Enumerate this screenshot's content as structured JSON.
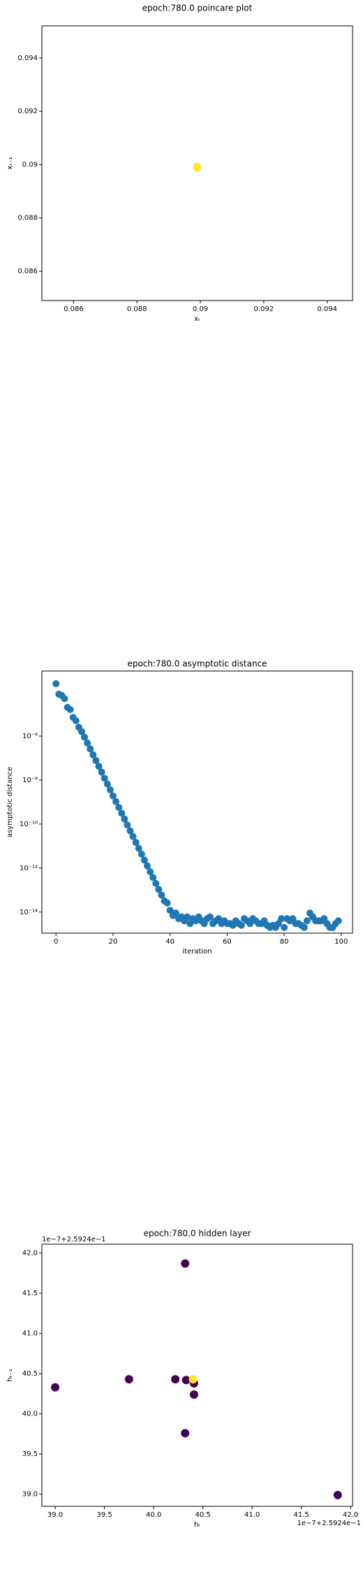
{
  "chart_data": [
    {
      "type": "scatter",
      "title": "epoch:780.0 poincare plot",
      "xlabel": "xₜ",
      "ylabel": "xₜ₋₁",
      "x": [
        0.0899
      ],
      "y": [
        0.0899
      ],
      "color": "#fde725",
      "xlim": [
        0.085,
        0.0948
      ],
      "ylim": [
        0.0849,
        0.0952
      ],
      "xticks": [
        0.086,
        0.088,
        0.09,
        0.092,
        0.094
      ],
      "yticks": [
        0.086,
        0.088,
        0.09,
        0.092,
        0.094
      ]
    },
    {
      "type": "scatter",
      "title": "epoch:780.0 asymptotic distance",
      "xlabel": "iteration",
      "ylabel": "asymptotic distance",
      "yscale": "log",
      "color": "#1f77b4",
      "x": [
        0,
        1,
        2,
        3,
        4,
        5,
        6,
        7,
        8,
        9,
        10,
        11,
        12,
        13,
        14,
        15,
        16,
        17,
        18,
        19,
        20,
        21,
        22,
        23,
        24,
        25,
        26,
        27,
        28,
        29,
        30,
        31,
        32,
        33,
        34,
        35,
        36,
        37,
        38,
        39,
        40,
        41,
        42,
        43,
        44,
        45,
        46,
        47,
        48,
        49,
        50,
        51,
        52,
        53,
        54,
        55,
        56,
        57,
        58,
        59,
        60,
        61,
        62,
        63,
        64,
        65,
        66,
        67,
        68,
        69,
        70,
        71,
        72,
        73,
        74,
        75,
        76,
        77,
        78,
        79,
        80,
        81,
        82,
        83,
        84,
        85,
        86,
        87,
        88,
        89,
        90,
        91,
        92,
        93,
        94,
        95,
        96,
        97,
        98,
        99
      ],
      "y": [
        0.00024,
        8e-05,
        7e-05,
        5e-05,
        2e-05,
        1.6e-05,
        7e-06,
        5e-06,
        2.5e-06,
        1.6e-06,
        8.9e-07,
        4.8e-07,
        2.6e-07,
        1.4e-07,
        7.7e-08,
        4.2e-08,
        2.3e-08,
        1.2e-08,
        6.6e-09,
        3.6e-09,
        1.9e-09,
        1.05e-09,
        5.7e-10,
        3.1e-10,
        1.7e-10,
        9.1e-11,
        4.9e-11,
        2.7e-11,
        1.45e-11,
        7.9e-12,
        4.3e-12,
        2.3e-12,
        1.26e-12,
        6.8e-13,
        3.7e-13,
        2e-13,
        1.07e-13,
        5.9e-14,
        3.2e-14,
        2.6e-14,
        1.2e-14,
        7e-15,
        9e-15,
        5e-15,
        6e-15,
        4e-15,
        6e-15,
        3e-15,
        5e-15,
        4e-15,
        6e-15,
        4e-15,
        3e-15,
        5e-15,
        6e-15,
        3e-15,
        4e-15,
        5e-15,
        3e-15,
        4e-15,
        3e-15,
        3e-15,
        2.5e-15,
        4e-15,
        3e-15,
        2.5e-15,
        5e-15,
        4e-15,
        3e-15,
        5e-15,
        4e-15,
        3e-15,
        3e-15,
        4e-15,
        2.5e-15,
        2e-15,
        2.5e-15,
        2e-15,
        3e-15,
        5e-15,
        2e-15,
        5e-15,
        4e-15,
        5e-15,
        3e-15,
        3e-15,
        2.5e-15,
        2e-15,
        4e-15,
        9e-15,
        6e-15,
        4e-15,
        4e-15,
        4e-15,
        5e-15,
        3e-15,
        2e-15,
        2e-15,
        3e-15,
        4e-15
      ],
      "xlim": [
        -4.95,
        103.95
      ],
      "ylim": [
        1.1e-15,
        0.0009
      ],
      "xticks": [
        0,
        20,
        40,
        60,
        80,
        100
      ],
      "yticks": [
        {
          "value": 1e-06,
          "label": "10⁻⁶"
        },
        {
          "value": 1e-08,
          "label": "10⁻⁸"
        },
        {
          "value": 1e-10,
          "label": "10⁻¹⁰"
        },
        {
          "value": 1e-12,
          "label": "10⁻¹²"
        },
        {
          "value": 1e-14,
          "label": "10⁻¹⁴"
        }
      ]
    },
    {
      "type": "scatter",
      "title": "epoch:780.0 hidden layer",
      "xlabel": "hₜ",
      "ylabel": "hₜ₋₁",
      "x_offset": "1e−7+2.5924e−1",
      "y_offset": "1e−7+2.5924e−1",
      "x": [
        39.0,
        39.75,
        40.22,
        40.32,
        40.32,
        40.33,
        40.41,
        40.41,
        40.4,
        41.87
      ],
      "y": [
        40.33,
        40.43,
        40.43,
        41.87,
        39.76,
        40.42,
        40.38,
        40.24,
        40.43,
        38.99
      ],
      "colors": [
        "#440154",
        "#440154",
        "#440154",
        "#440154",
        "#440154",
        "#440154",
        "#440154",
        "#440154",
        "#fde725",
        "#440154"
      ],
      "xlim": [
        38.865,
        42.02
      ],
      "ylim": [
        38.85,
        42.11
      ],
      "xticks": [
        {
          "value": 39.0,
          "label": "39.0"
        },
        {
          "value": 39.5,
          "label": "39.5"
        },
        {
          "value": 40.0,
          "label": "40.0"
        },
        {
          "value": 40.5,
          "label": "40.5"
        },
        {
          "value": 41.0,
          "label": "41.0"
        },
        {
          "value": 41.5,
          "label": "41.5"
        },
        {
          "value": 42.0,
          "label": "42.0"
        }
      ],
      "yticks": [
        {
          "value": 39.0,
          "label": "39.0"
        },
        {
          "value": 39.5,
          "label": "39.5"
        },
        {
          "value": 40.0,
          "label": "40.0"
        },
        {
          "value": 40.5,
          "label": "40.5"
        },
        {
          "value": 41.0,
          "label": "41.0"
        },
        {
          "value": 41.5,
          "label": "41.5"
        },
        {
          "value": 42.0,
          "label": "42.0"
        }
      ]
    }
  ]
}
